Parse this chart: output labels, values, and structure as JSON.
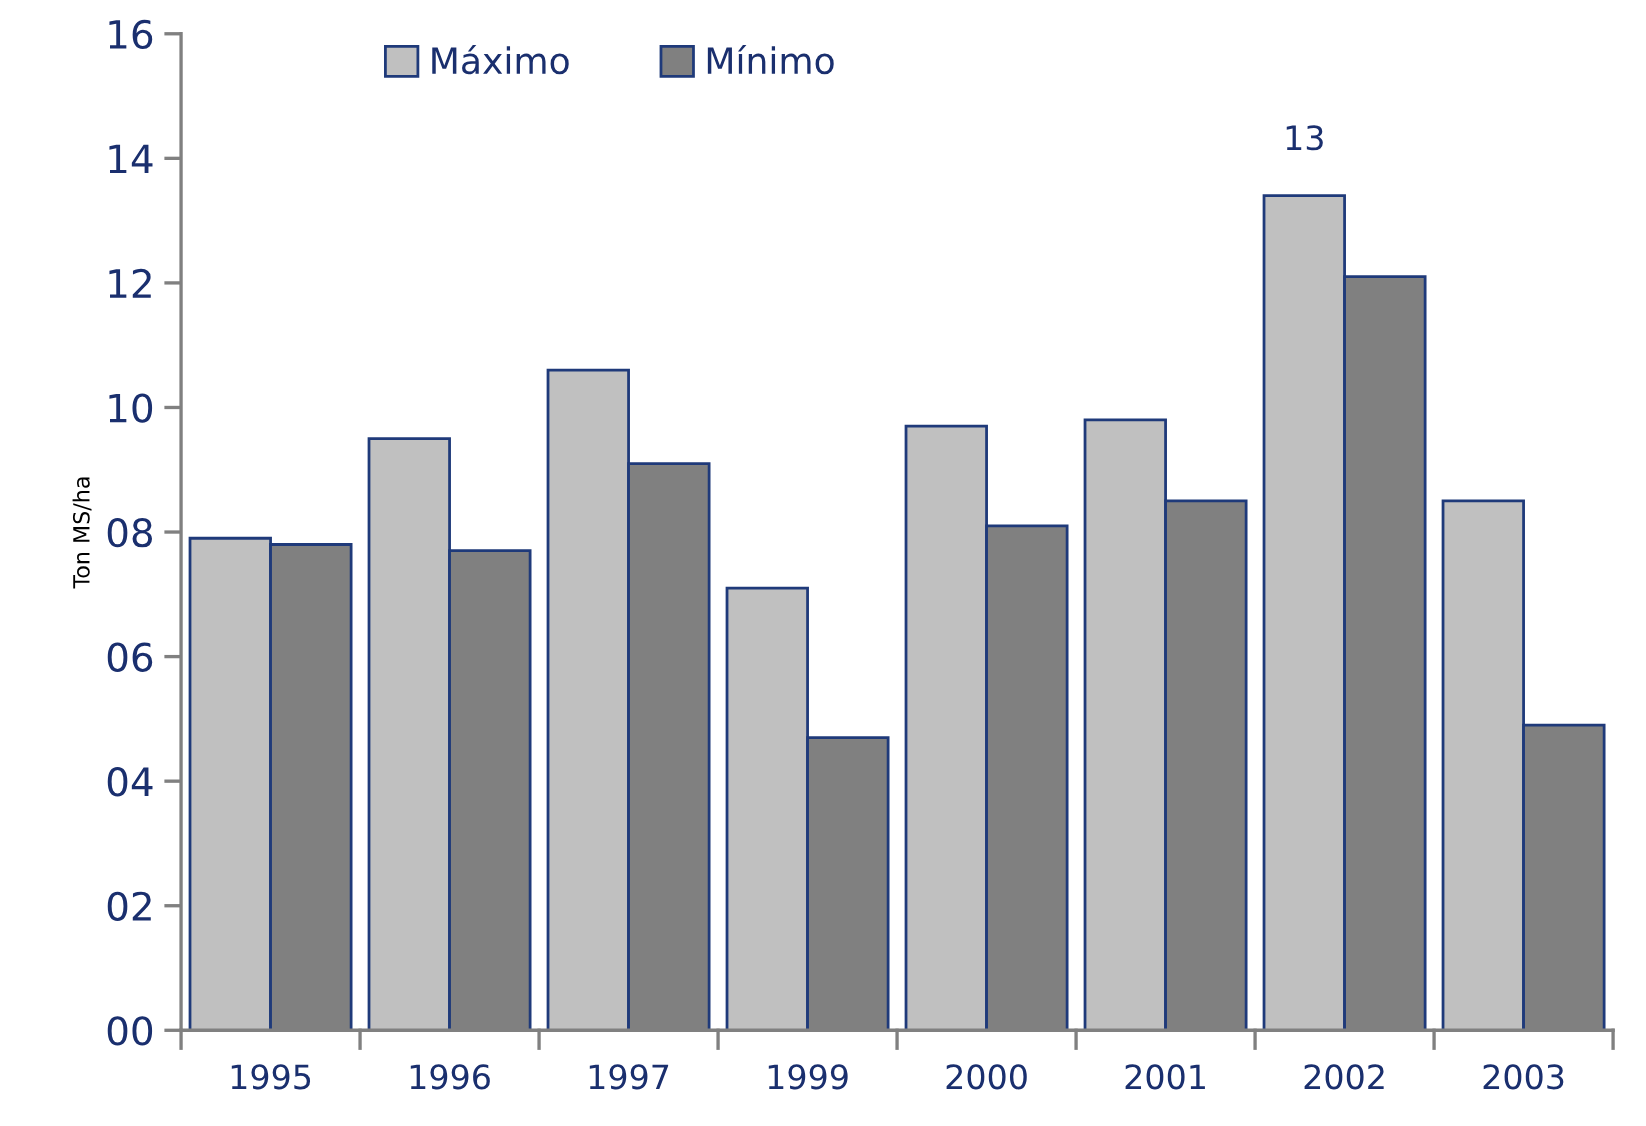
{
  "chart_data": {
    "type": "bar",
    "ylabel": "Ton MS/ha",
    "categories": [
      "1995",
      "1996",
      "1997",
      "1999",
      "2000",
      "2001",
      "2002",
      "2003"
    ],
    "series": [
      {
        "name": "Máximo",
        "color": "#c0c0c0",
        "values": [
          7.9,
          9.5,
          10.6,
          7.1,
          9.7,
          9.8,
          13.4,
          8.5
        ],
        "value_labels": [
          null,
          null,
          null,
          null,
          null,
          null,
          "13",
          null
        ]
      },
      {
        "name": "Mínimo",
        "color": "#808080",
        "values": [
          7.8,
          7.7,
          9.1,
          4.7,
          8.1,
          8.5,
          12.1,
          4.9
        ]
      }
    ],
    "ylim": [
      0,
      16
    ],
    "yticks": [
      {
        "value": 0,
        "label": "00"
      },
      {
        "value": 2,
        "label": "02"
      },
      {
        "value": 4,
        "label": "04"
      },
      {
        "value": 6,
        "label": "06"
      },
      {
        "value": 8,
        "label": "08"
      },
      {
        "value": 10,
        "label": "10"
      },
      {
        "value": 12,
        "label": "12"
      },
      {
        "value": 14,
        "label": "14"
      },
      {
        "value": 16,
        "label": "16"
      }
    ],
    "grid": false,
    "legend": "top left"
  }
}
